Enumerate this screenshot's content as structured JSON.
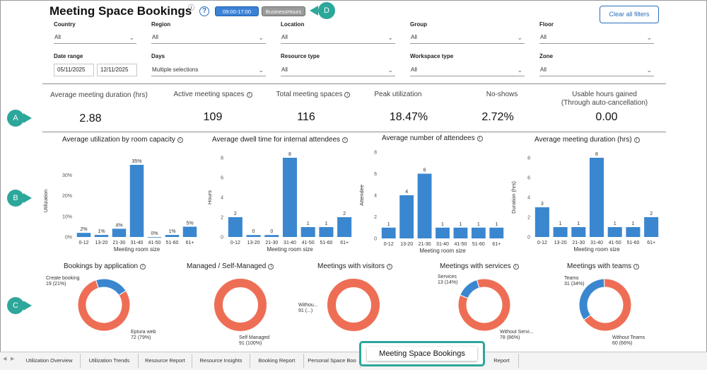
{
  "header": {
    "title": "Meeting Space Bookings",
    "title_info": "ⓘ",
    "help": "?",
    "time_pill": "09:00-17:00",
    "hours_pill": "BusinessHours",
    "clear_filters": "Clear all filters"
  },
  "filters": {
    "country": {
      "label": "Country",
      "value": "All"
    },
    "region": {
      "label": "Region",
      "value": "All"
    },
    "location": {
      "label": "Location",
      "value": "All"
    },
    "group": {
      "label": "Group",
      "value": "All"
    },
    "floor": {
      "label": "Floor",
      "value": "All"
    },
    "date_range": {
      "label": "Date range",
      "start": "05/11/2025",
      "end": "12/11/2025"
    },
    "days": {
      "label": "Days",
      "value": "Multiple selections"
    },
    "resource_type": {
      "label": "Resource type",
      "value": "All"
    },
    "workspace_type": {
      "label": "Workspace type",
      "value": "All"
    },
    "zone": {
      "label": "Zone",
      "value": "All"
    }
  },
  "kpis": [
    {
      "label": "Average meeting duration (hrs)",
      "value": "2.88",
      "info": false
    },
    {
      "label": "Active meeting spaces",
      "value": "109",
      "info": true
    },
    {
      "label": "Total meeting spaces",
      "value": "116",
      "info": true
    },
    {
      "label": "Peak utilization",
      "value": "18.47%",
      "info": false
    },
    {
      "label": "No-shows",
      "value": "2.72%",
      "info": false
    },
    {
      "label": "Usable hours gained",
      "label2": "(Through auto-cancellation)",
      "value": "0.00",
      "info": false
    }
  ],
  "callouts": {
    "a": "A",
    "b": "B",
    "c": "C",
    "d": "D"
  },
  "colors": {
    "bar": "#3a87d0",
    "donut_primary": "#ee6e55",
    "donut_secondary": "#3a87d0",
    "callout": "#2ca79a",
    "active_tab_border": "#2ca79a"
  },
  "chart_data": [
    {
      "type": "bar",
      "title": "Average utilization by room capacity",
      "xlabel": "Meeting room size",
      "ylabel": "Utilization",
      "categories": [
        "0-12",
        "13-20",
        "21-30",
        "31-40",
        "41-50",
        "51-60",
        "61+"
      ],
      "values": [
        2,
        1,
        4,
        35,
        0,
        1,
        5
      ],
      "data_labels": [
        "2%",
        "1%",
        "4%",
        "35%",
        "0%",
        "1%",
        "5%"
      ],
      "yticks": [
        "0%",
        "10%",
        "20%",
        "30%"
      ],
      "ylim": [
        0,
        35
      ]
    },
    {
      "type": "bar",
      "title": "Average dwell time for internal attendees",
      "xlabel": "Meeting room size",
      "ylabel": "Hours",
      "categories": [
        "0-12",
        "13-20",
        "21-30",
        "31-40",
        "41-50",
        "51-60",
        "61+"
      ],
      "values": [
        2,
        0.2,
        0.2,
        8,
        1,
        1,
        2
      ],
      "data_labels": [
        "2",
        "0",
        "0",
        "8",
        "1",
        "1",
        "2"
      ],
      "yticks": [
        "0",
        "2",
        "4",
        "6",
        "8"
      ],
      "ylim": [
        0,
        8
      ]
    },
    {
      "type": "bar",
      "title": "Average number of attendees",
      "xlabel": "Meeting room size",
      "ylabel": "Attendee",
      "categories": [
        "0-12",
        "13-20",
        "21-30",
        "31-40",
        "41-50",
        "51-60",
        "61+"
      ],
      "values": [
        1,
        4,
        6,
        1,
        1,
        1,
        1
      ],
      "data_labels": [
        "1",
        "4",
        "6",
        "1",
        "1",
        "1",
        "1"
      ],
      "yticks": [
        "0",
        "2",
        "4",
        "6",
        "8"
      ],
      "ylim": [
        0,
        8
      ]
    },
    {
      "type": "bar",
      "title": "Average meeting duration (hrs)",
      "xlabel": "Meeting room size",
      "ylabel": "Duration (hrs)",
      "categories": [
        "0-12",
        "13-20",
        "21-30",
        "31-40",
        "41-50",
        "51-60",
        "61+"
      ],
      "values": [
        3,
        1,
        1,
        8,
        1,
        1,
        2
      ],
      "data_labels": [
        "3",
        "1",
        "1",
        "8",
        "1",
        "1",
        "2"
      ],
      "yticks": [
        "0",
        "2",
        "4",
        "6",
        "8"
      ],
      "ylim": [
        0,
        8
      ]
    },
    {
      "type": "pie",
      "title": "Bookings by application",
      "slices": [
        {
          "name": "Create booking",
          "value": 19,
          "label": "19 (21%)"
        },
        {
          "name": "Eptura web",
          "value": 72,
          "label": "72 (79%)"
        }
      ]
    },
    {
      "type": "pie",
      "title": "Managed / Self-Managed",
      "slices": [
        {
          "name": "Self Managed",
          "value": 91,
          "label": "91 (100%)"
        }
      ]
    },
    {
      "type": "pie",
      "title": "Meetings with visitors",
      "slices": [
        {
          "name": "Withou...",
          "value": 91,
          "label": "91 (...)"
        }
      ]
    },
    {
      "type": "pie",
      "title": "Meetings with services",
      "slices": [
        {
          "name": "Services",
          "value": 13,
          "label": "13 (14%)"
        },
        {
          "name": "Without Servi...",
          "value": 78,
          "label": "78 (86%)"
        }
      ]
    },
    {
      "type": "pie",
      "title": "Meetings with teams",
      "slices": [
        {
          "name": "Teams",
          "value": 31,
          "label": "31 (34%)"
        },
        {
          "name": "Without Teams",
          "value": 60,
          "label": "60 (66%)"
        }
      ]
    }
  ],
  "tabs": [
    {
      "label": "Utilization Overview"
    },
    {
      "label": "Utilization Trends"
    },
    {
      "label": "Resource Report"
    },
    {
      "label": "Resource Insights"
    },
    {
      "label": "Booking Report"
    },
    {
      "label": "Personal Space Boo"
    },
    {
      "label": "Meeting Space Bookings",
      "active": true
    },
    {
      "label": "Report"
    }
  ]
}
